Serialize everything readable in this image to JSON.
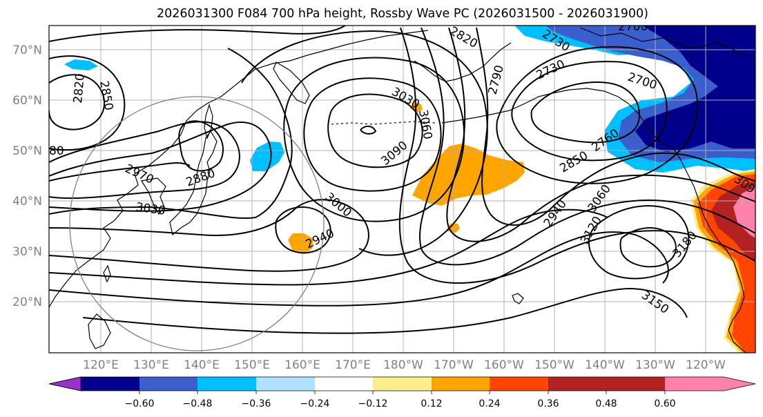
{
  "title": "2026031300 F084 700 hPa height, Rossby Wave PC (2026031500 - 2026031900)",
  "lat_labels": [
    "70°N",
    "60°N",
    "50°N",
    "40°N",
    "30°N",
    "20°N"
  ],
  "lon_labels": [
    "120°E",
    "130°E",
    "140°E",
    "150°E",
    "160°E",
    "170°E",
    "180°W",
    "170°W",
    "160°W",
    "150°W",
    "140°W",
    "130°W",
    "120°W"
  ],
  "contour_labels": [
    "2820",
    "2850",
    "80",
    "2970",
    "2880",
    "3030",
    "3000",
    "2940",
    "3030",
    "3060",
    "3090",
    "2820",
    "2790",
    "2730",
    "2730",
    "2700",
    "2700",
    "2760",
    "2850",
    "2940",
    "3060",
    "3120",
    "3180",
    "3150",
    "309"
  ],
  "colorbar": {
    "colors": [
      "#9932CC",
      "#00008B",
      "#3A5FCD",
      "#00BFFF",
      "#B0E2FF",
      "#FFFFFF",
      "#FFEC8B",
      "#FFA500",
      "#FF4500",
      "#B22222",
      "#FF82AB"
    ],
    "ticks": [
      "−0.60",
      "−0.48",
      "−0.36",
      "−0.24",
      "−0.12",
      "0.12",
      "0.24",
      "0.36",
      "0.48",
      "0.60"
    ]
  }
}
